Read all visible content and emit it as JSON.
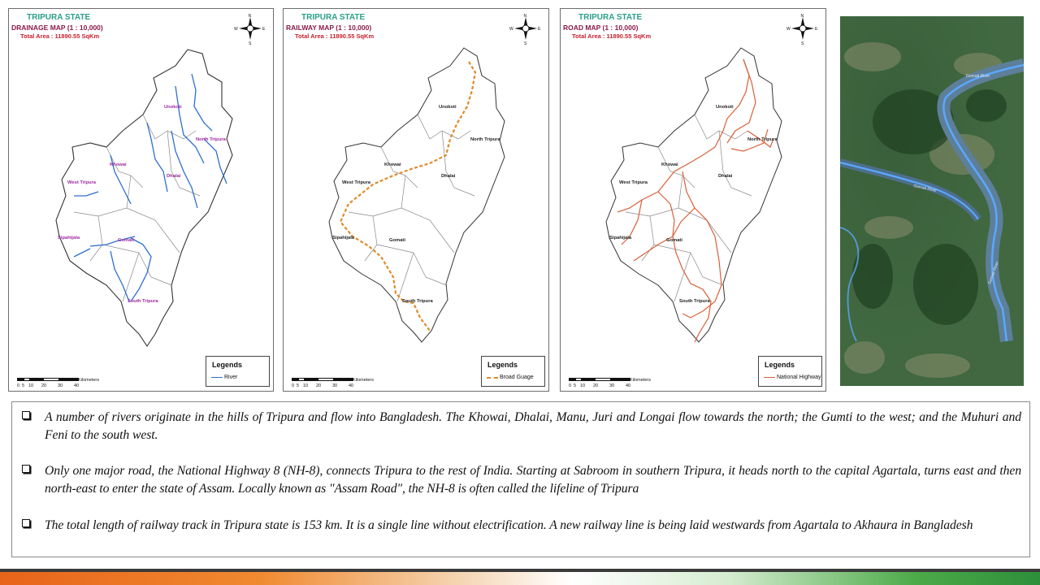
{
  "maps": [
    {
      "id": "drainage",
      "state_title": "TRIPURA STATE",
      "map_title": "DRAINAGE MAP (1 : 10,000)",
      "total_area": "Total Area : 11890.55 SqKm",
      "legend_title": "Legends",
      "legend_item": "River",
      "legend_color": "#2e6fd0",
      "districts": [
        "Unokoti",
        "North Tripura",
        "Khowai",
        "Dhalai",
        "West Tripura",
        "Sipahijala",
        "Gomati",
        "South Tripura"
      ]
    },
    {
      "id": "railway",
      "state_title": "TRIPURA STATE",
      "map_title": "RAILWAY MAP (1 : 10,000)",
      "total_area": "Total Area : 11890.55 SqKm",
      "legend_title": "Legends",
      "legend_item": "Broad Guage",
      "legend_color": "#e08a2a",
      "districts": [
        "Unokoti",
        "North Tripura",
        "Khowai",
        "Dhalai",
        "West Tripura",
        "Sipahijala",
        "Gomati",
        "South Tripura"
      ]
    },
    {
      "id": "road",
      "state_title": "TRIPURA STATE",
      "map_title": "ROAD MAP (1 : 10,000)",
      "total_area": "Total Area : 11890.55 SqKm",
      "legend_title": "Legends",
      "legend_item": "National Highway",
      "legend_color": "#d9603a",
      "districts": [
        "Unokoti",
        "North Tripura",
        "Khowai",
        "Dhalai",
        "West Tripura",
        "Sipahijala",
        "Gomati",
        "South Tripura"
      ]
    }
  ],
  "compass": {
    "n": "N",
    "s": "S",
    "e": "E",
    "w": "W"
  },
  "scale": {
    "ticks": [
      "0",
      "5",
      "10",
      "20",
      "30",
      "40"
    ],
    "unit": "Kilometers"
  },
  "satellite": {
    "labels": [
      "Gomati River",
      "Gomati River",
      "Gomati River"
    ]
  },
  "bullets": [
    {
      "text": "A number of rivers originate in the hills of Tripura and flow into Bangladesh. The Khowai, Dhalai, Manu, Juri and Longai flow towards the north; the Gumti to the west; and the Muhuri and Feni to the south west."
    },
    {
      "text": "Only one major road, the National Highway 8 (NH-8), connects Tripura to the rest of India. Starting at Sabroom in southern Tripura, it heads north to the capital Agartala, turns east and then north-east to enter the state of Assam. Locally known as \"Assam Road\", the NH-8 is often called the lifeline of Tripura"
    },
    {
      "text": "The total length of railway track in Tripura state is 153 km. It is a single line without electrification. A new railway line is being laid westwards from Agartala to Akhaura in Bangladesh"
    }
  ]
}
